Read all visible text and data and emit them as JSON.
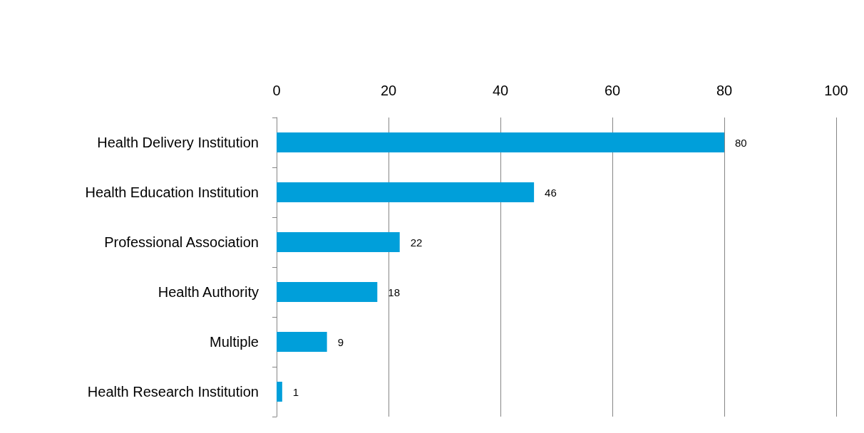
{
  "chart_data": {
    "type": "bar",
    "orientation": "horizontal",
    "categories": [
      "Health Delivery Institution",
      "Health Education Institution",
      "Professional Association",
      "Health Authority",
      "Multiple",
      "Health Research Institution"
    ],
    "values": [
      80,
      46,
      22,
      18,
      9,
      1
    ],
    "color": "#009fda",
    "xlim": [
      0,
      100
    ],
    "xticks": [
      0,
      20,
      40,
      60,
      80,
      100
    ],
    "grid": "x",
    "data_labels": true
  }
}
